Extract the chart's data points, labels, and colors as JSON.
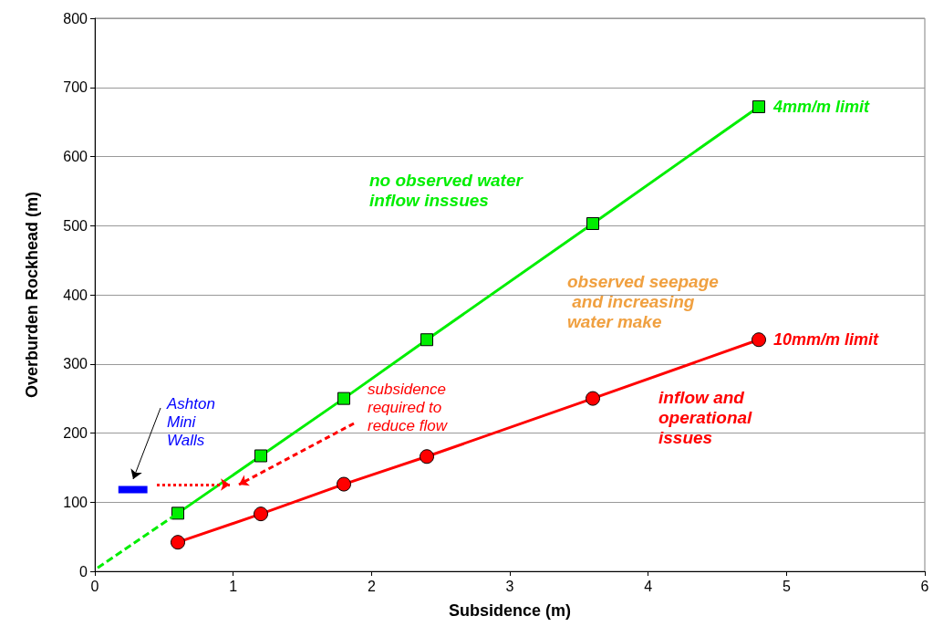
{
  "chart_data": {
    "type": "line",
    "xlabel": "Subsidence (m)",
    "ylabel": "Overburden Rockhead (m)",
    "xlim": [
      0,
      6
    ],
    "xticks": [
      0,
      1,
      2,
      3,
      4,
      5,
      6
    ],
    "ylim": [
      0,
      800
    ],
    "yticks": [
      0,
      100,
      200,
      300,
      400,
      500,
      600,
      700,
      800
    ],
    "grid": "y",
    "series": [
      {
        "name": "4mm/m limit",
        "color": "#00ee00",
        "x": [
          0.6,
          1.2,
          1.8,
          2.4,
          3.6,
          4.8
        ],
        "values": [
          84,
          167,
          250,
          335,
          503,
          672
        ],
        "marker": "square",
        "line_style": "solid"
      },
      {
        "color": "#00ee00",
        "x": [
          0.02,
          0.6
        ],
        "values": [
          5,
          84
        ],
        "marker": "none",
        "line_style": "dashed"
      },
      {
        "name": "10mm/m limit",
        "color": "#ff0000",
        "x": [
          0.6,
          1.2,
          1.8,
          2.4,
          3.6,
          4.8
        ],
        "values": [
          42,
          83,
          126,
          166,
          250,
          335
        ],
        "marker": "circle",
        "line_style": "solid"
      },
      {
        "color": "#0000ff",
        "x": [
          0.17,
          0.38
        ],
        "values": [
          118,
          118
        ],
        "marker": "none",
        "line_style": "solid"
      }
    ],
    "annotations": [
      "no observed water inflow inssues",
      "observed seepage and increasing water make",
      "inflow and operational issues",
      "subsidence required to reduce flow",
      "Ashton Mini Walls"
    ]
  }
}
